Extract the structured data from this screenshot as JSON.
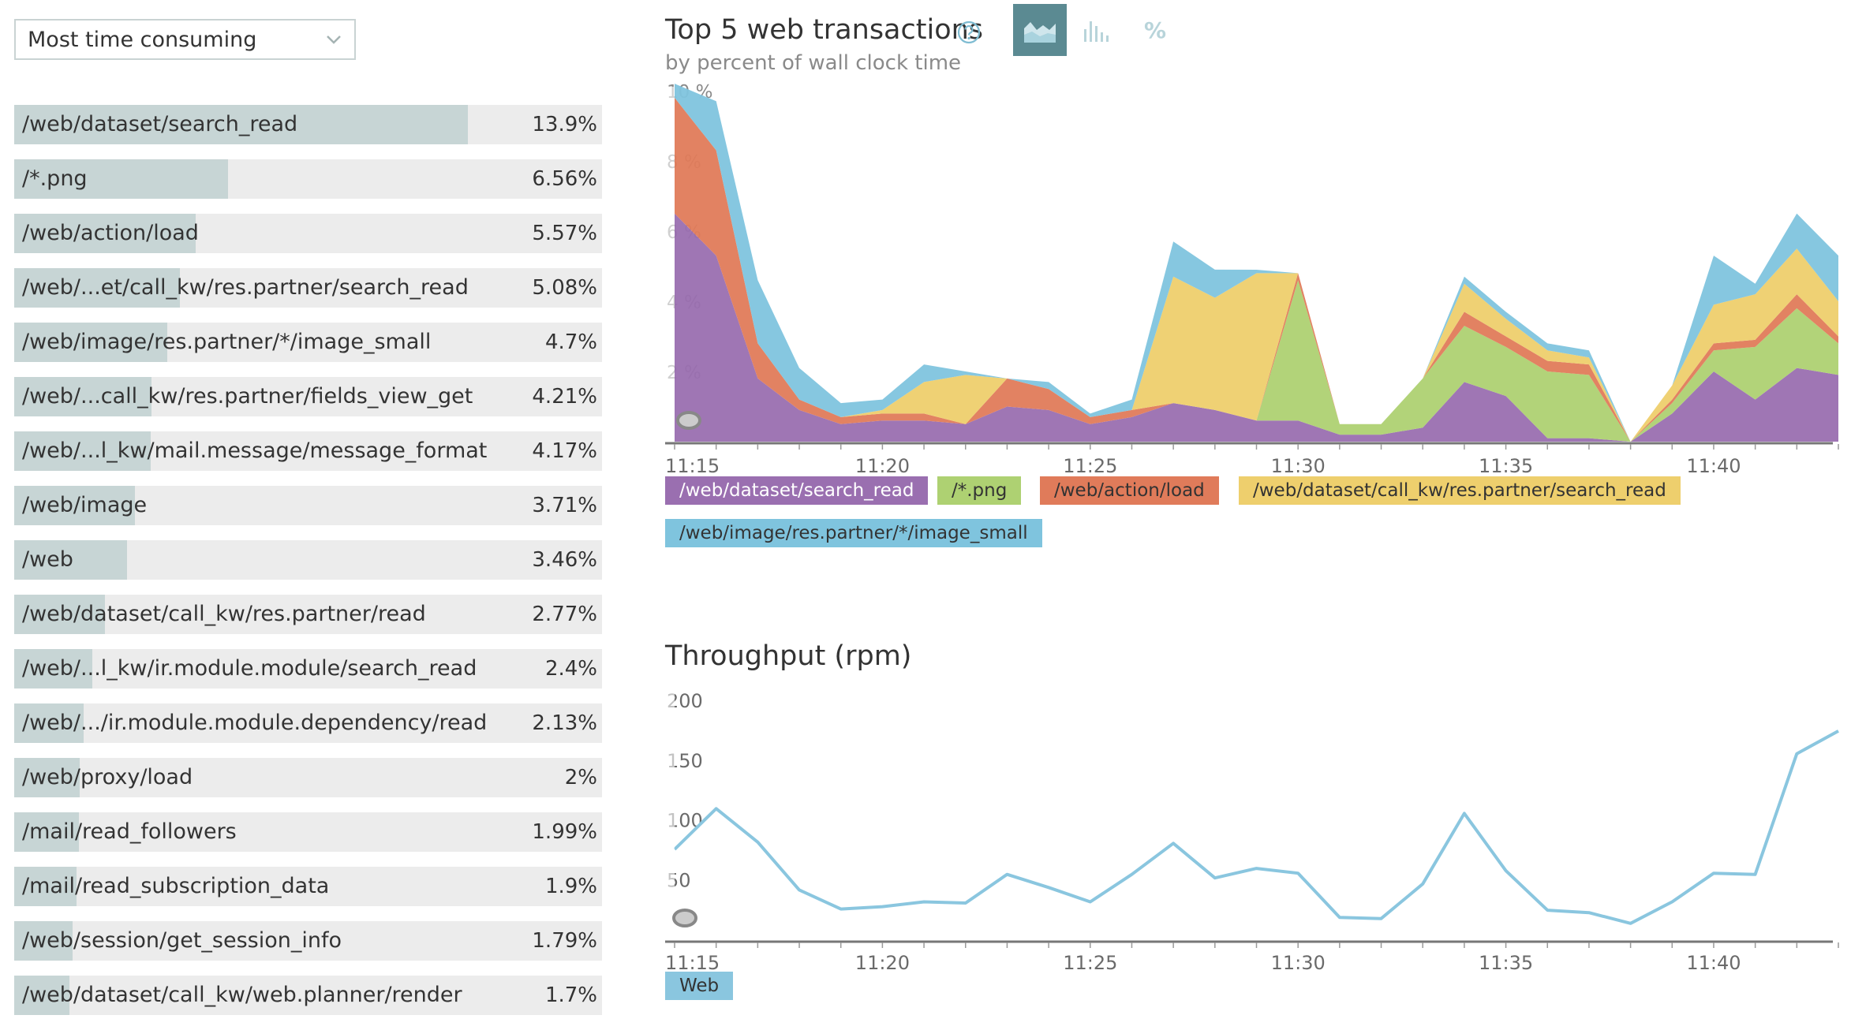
{
  "sort_select": {
    "value": "Most time consuming"
  },
  "transactions": [
    {
      "name": "/web/dataset/search_read",
      "percent": "13.9%",
      "share": 13.9
    },
    {
      "name": "/*.png",
      "percent": "6.56%",
      "share": 6.56
    },
    {
      "name": "/web/action/load",
      "percent": "5.57%",
      "share": 5.57
    },
    {
      "name": "/web/...et/call_kw/res.partner/search_read",
      "percent": "5.08%",
      "share": 5.08
    },
    {
      "name": "/web/image/res.partner/*/image_small",
      "percent": "4.7%",
      "share": 4.7
    },
    {
      "name": "/web/...call_kw/res.partner/fields_view_get",
      "percent": "4.21%",
      "share": 4.21
    },
    {
      "name": "/web/...l_kw/mail.message/message_format",
      "percent": "4.17%",
      "share": 4.17
    },
    {
      "name": "/web/image",
      "percent": "3.71%",
      "share": 3.71
    },
    {
      "name": "/web",
      "percent": "3.46%",
      "share": 3.46
    },
    {
      "name": "/web/dataset/call_kw/res.partner/read",
      "percent": "2.77%",
      "share": 2.77
    },
    {
      "name": "/web/...l_kw/ir.module.module/search_read",
      "percent": "2.4%",
      "share": 2.4
    },
    {
      "name": "/web/.../ir.module.module.dependency/read",
      "percent": "2.13%",
      "share": 2.13
    },
    {
      "name": "/web/proxy/load",
      "percent": "2%",
      "share": 2.0
    },
    {
      "name": "/mail/read_followers",
      "percent": "1.99%",
      "share": 1.99
    },
    {
      "name": "/mail/read_subscription_data",
      "percent": "1.9%",
      "share": 1.9
    },
    {
      "name": "/web/session/get_session_info",
      "percent": "1.79%",
      "share": 1.79
    },
    {
      "name": "/web/dataset/call_kw/web.planner/render",
      "percent": "1.7%",
      "share": 1.7
    }
  ],
  "top5": {
    "title": "Top 5 web transactions",
    "subtitle": "by percent of wall clock time",
    "icons": {
      "help": "help-circle-icon",
      "area": "area-chart-icon",
      "bars": "bar-chart-icon"
    },
    "percent_toggle": "%"
  },
  "throughput": {
    "title": "Throughput (rpm)"
  },
  "chart_data": [
    {
      "type": "area",
      "stacked": true,
      "x": [
        "11:15",
        "11:16",
        "11:17",
        "11:18",
        "11:19",
        "11:20",
        "11:21",
        "11:22",
        "11:23",
        "11:24",
        "11:25",
        "11:26",
        "11:27",
        "11:28",
        "11:29",
        "11:30",
        "11:31",
        "11:32",
        "11:33",
        "11:34",
        "11:35",
        "11:36",
        "11:37",
        "11:38",
        "11:39",
        "11:40",
        "11:41",
        "11:42",
        "11:43"
      ],
      "x_ticks": [
        "11:15",
        "11:20",
        "11:25",
        "11:30",
        "11:35",
        "11:40"
      ],
      "y_ticks": [
        "2 %",
        "4 %",
        "6 %",
        "8 %",
        "10 %"
      ],
      "ylim": [
        0,
        10
      ],
      "series": [
        {
          "name": "/web/dataset/search_read",
          "color": "#9a6fb0",
          "values": [
            6.5,
            5.3,
            1.8,
            0.9,
            0.5,
            0.6,
            0.6,
            0.5,
            1.0,
            0.9,
            0.5,
            0.7,
            1.1,
            0.9,
            0.6,
            0.6,
            0.2,
            0.2,
            0.4,
            1.7,
            1.3,
            0.1,
            0.1,
            0.0,
            0.8,
            2.0,
            1.2,
            2.1,
            1.9
          ]
        },
        {
          "name": "/*.png",
          "color": "#aed172",
          "values": [
            0,
            0,
            0,
            0,
            0,
            0,
            0,
            0,
            0,
            0,
            0,
            0,
            0,
            0,
            0,
            4.0,
            0.3,
            0.3,
            1.4,
            1.6,
            1.4,
            1.9,
            1.8,
            0.0,
            0.3,
            0.6,
            1.5,
            1.7,
            0.9
          ]
        },
        {
          "name": "/web/action/load",
          "color": "#e07b5a",
          "values": [
            3.3,
            3.0,
            1.0,
            0.3,
            0.2,
            0.2,
            0.2,
            0.0,
            0.8,
            0.6,
            0.2,
            0.2,
            0.0,
            0.0,
            0.0,
            0.2,
            0.0,
            0.0,
            0.0,
            0.4,
            0.3,
            0.3,
            0.3,
            0.0,
            0.1,
            0.2,
            0.2,
            0.4,
            0.2
          ]
        },
        {
          "name": "/web/dataset/call_kw/res.partner/search_read",
          "color": "#eecf6d",
          "values": [
            0,
            0,
            0,
            0,
            0,
            0.1,
            0.9,
            1.4,
            0,
            0,
            0,
            0,
            3.6,
            3.2,
            4.2,
            0,
            0,
            0,
            0,
            0.8,
            0.5,
            0.3,
            0.2,
            0.0,
            0.4,
            1.1,
            1.3,
            1.3,
            1.0
          ]
        },
        {
          "name": "/web/image/res.partner/*/image_small",
          "color": "#7fc4de",
          "values": [
            0.4,
            1.4,
            1.8,
            0.9,
            0.4,
            0.3,
            0.5,
            0.1,
            0,
            0.2,
            0.1,
            0.3,
            1.0,
            0.8,
            0.1,
            0,
            0,
            0,
            0,
            0.2,
            0.2,
            0.2,
            0.2,
            0.0,
            0.0,
            1.4,
            0.3,
            1.0,
            1.3
          ]
        }
      ]
    },
    {
      "type": "line",
      "x": [
        "11:15",
        "11:16",
        "11:17",
        "11:18",
        "11:19",
        "11:20",
        "11:21",
        "11:22",
        "11:23",
        "11:24",
        "11:25",
        "11:26",
        "11:27",
        "11:28",
        "11:29",
        "11:30",
        "11:31",
        "11:32",
        "11:33",
        "11:34",
        "11:35",
        "11:36",
        "11:37",
        "11:38",
        "11:39",
        "11:40",
        "11:41",
        "11:42",
        "11:43"
      ],
      "x_ticks": [
        "11:15",
        "11:20",
        "11:25",
        "11:30",
        "11:35",
        "11:40"
      ],
      "y_ticks": [
        "50",
        "100",
        "150",
        "200"
      ],
      "ylim": [
        0,
        200
      ],
      "series": [
        {
          "name": "Web",
          "color": "#8ac6df",
          "values": [
            76,
            110,
            82,
            42,
            26,
            28,
            32,
            31,
            55,
            44,
            32,
            55,
            81,
            52,
            60,
            56,
            19,
            18,
            47,
            106,
            58,
            25,
            23,
            14,
            32,
            56,
            55,
            156,
            175
          ]
        }
      ]
    }
  ],
  "legend": {
    "top5": [
      {
        "label": "/web/dataset/search_read",
        "color": "#9a6fb0"
      },
      {
        "label": "/*.png",
        "color": "#aed172"
      },
      {
        "label": "/web/action/load",
        "color": "#e07b5a"
      },
      {
        "label": "/web/dataset/call_kw/res.partner/search_read",
        "color": "#eecf6d"
      },
      {
        "label": "/web/image/res.partner/*/image_small",
        "color": "#7fc4de"
      }
    ],
    "throughput": [
      {
        "label": "Web",
        "color": "#8ac6df"
      }
    ]
  }
}
